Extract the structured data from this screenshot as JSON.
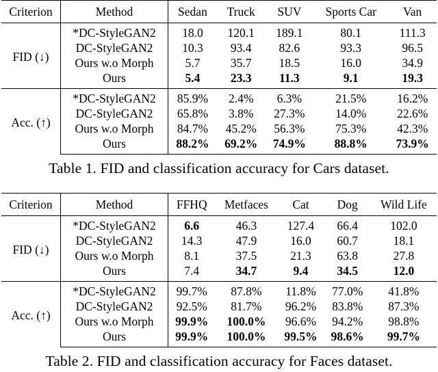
{
  "tables": [
    {
      "caption": "Table 1. FID and classification accuracy for Cars dataset.",
      "header": [
        "Criterion",
        "Method",
        "Sedan",
        "Truck",
        "SUV",
        "Sports Car",
        "Van"
      ],
      "groups": [
        {
          "criterion": "FID (↓)",
          "rows": [
            {
              "method": "*DC-StyleGAN2",
              "values": [
                "18.0",
                "120.1",
                "189.1",
                "80.1",
                "111.3"
              ],
              "bold": [
                false,
                false,
                false,
                false,
                false
              ]
            },
            {
              "method": "DC-StyleGAN2",
              "values": [
                "10.3",
                "93.4",
                "82.6",
                "93.3",
                "96.5"
              ],
              "bold": [
                false,
                false,
                false,
                false,
                false
              ]
            },
            {
              "method": "Ours w.o Morph",
              "values": [
                "5.7",
                "35.7",
                "18.5",
                "16.0",
                "34.9"
              ],
              "bold": [
                false,
                false,
                false,
                false,
                false
              ]
            },
            {
              "method": "Ours",
              "values": [
                "5.4",
                "23.3",
                "11.3",
                "9.1",
                "19.3"
              ],
              "bold": [
                true,
                true,
                true,
                true,
                true
              ]
            }
          ]
        },
        {
          "criterion": "Acc. (↑)",
          "rows": [
            {
              "method": "*DC-StyleGAN2",
              "values": [
                "85.9%",
                "2.4%",
                "6.3%",
                "21.5%",
                "16.2%"
              ],
              "bold": [
                false,
                false,
                false,
                false,
                false
              ]
            },
            {
              "method": "DC-StyleGAN2",
              "values": [
                "65.8%",
                "3.8%",
                "27.3%",
                "14.0%",
                "22.6%"
              ],
              "bold": [
                false,
                false,
                false,
                false,
                false
              ]
            },
            {
              "method": "Ours w.o Morph",
              "values": [
                "84.7%",
                "45.2%",
                "56.3%",
                "75.3%",
                "42.3%"
              ],
              "bold": [
                false,
                false,
                false,
                false,
                false
              ]
            },
            {
              "method": "Ours",
              "values": [
                "88.2%",
                "69.2%",
                "74.9%",
                "88.8%",
                "73.9%"
              ],
              "bold": [
                true,
                true,
                true,
                true,
                true
              ]
            }
          ]
        }
      ]
    },
    {
      "caption": "Table 2. FID and classification accuracy for Faces dataset.",
      "header": [
        "Criterion",
        "Method",
        "FFHQ",
        "Metfaces",
        "Cat",
        "Dog",
        "Wild Life"
      ],
      "groups": [
        {
          "criterion": "FID (↓)",
          "rows": [
            {
              "method": "*DC-StyleGAN2",
              "values": [
                "6.6",
                "46.3",
                "127.4",
                "66.4",
                "102.0"
              ],
              "bold": [
                true,
                false,
                false,
                false,
                false
              ]
            },
            {
              "method": "DC-StyleGAN2",
              "values": [
                "14.3",
                "47.9",
                "16.0",
                "60.7",
                "18.1"
              ],
              "bold": [
                false,
                false,
                false,
                false,
                false
              ]
            },
            {
              "method": "Ours w.o Morph",
              "values": [
                "8.1",
                "37.5",
                "21.3",
                "63.8",
                "27.8"
              ],
              "bold": [
                false,
                false,
                false,
                false,
                false
              ]
            },
            {
              "method": "Ours",
              "values": [
                "7.4",
                "34.7",
                "9.4",
                "34.5",
                "12.0"
              ],
              "bold": [
                false,
                true,
                true,
                true,
                true
              ]
            }
          ]
        },
        {
          "criterion": "Acc. (↑)",
          "rows": [
            {
              "method": "*DC-StyleGAN2",
              "values": [
                "99.7%",
                "87.8%",
                "11.8%",
                "77.0%",
                "41.8%"
              ],
              "bold": [
                false,
                false,
                false,
                false,
                false
              ]
            },
            {
              "method": "DC-StyleGAN2",
              "values": [
                "92.5%",
                "81.7%",
                "96.2%",
                "83.8%",
                "87.3%"
              ],
              "bold": [
                false,
                false,
                false,
                false,
                false
              ]
            },
            {
              "method": "Ours w.o Morph",
              "values": [
                "99.9%",
                "100.0%",
                "96.6%",
                "94.2%",
                "98.8%"
              ],
              "bold": [
                true,
                true,
                false,
                false,
                false
              ]
            },
            {
              "method": "Ours",
              "values": [
                "99.9%",
                "100.0%",
                "99.5%",
                "98.6%",
                "99.7%"
              ],
              "bold": [
                true,
                true,
                true,
                true,
                true
              ]
            }
          ]
        }
      ]
    }
  ]
}
